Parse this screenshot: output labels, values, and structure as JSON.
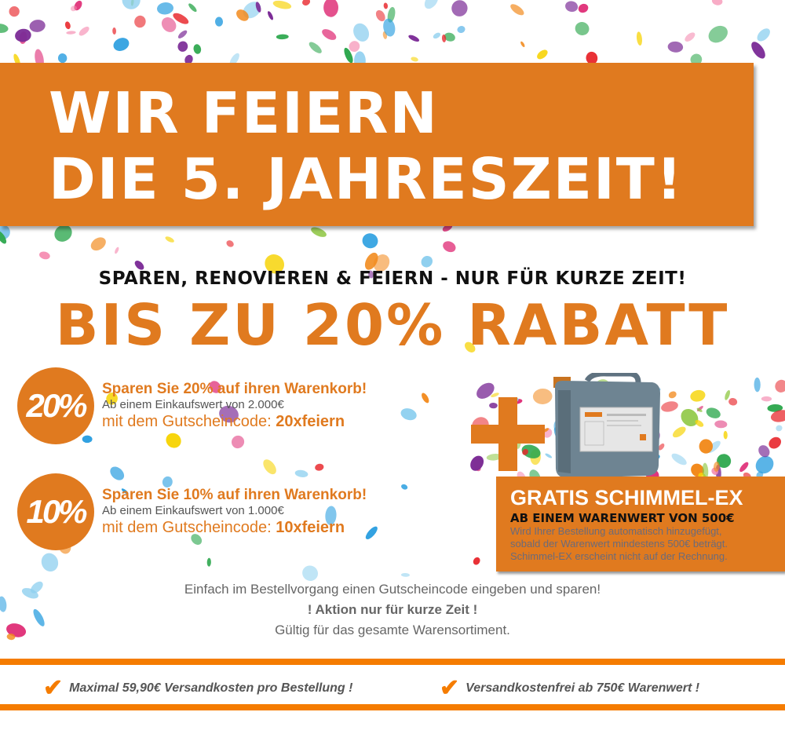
{
  "colors": {
    "brand_orange": "#e07a1f",
    "bar_orange": "#f57c00",
    "text_gray": "#666666"
  },
  "banner": {
    "line1": "WIR FEIERN",
    "line2": "DIE 5. JAHRESZEIT!"
  },
  "tagline": "SPAREN, RENOVIEREN & FEIERN - NUR FÜR KURZE ZEIT!",
  "headline": "BIS ZU 20% RABATT",
  "offers": [
    {
      "badge": "20%",
      "title": "Sparen Sie 20% auf ihren Warenkorb!",
      "condition": "Ab einem Einkaufswert von 2.000€",
      "code_label": "mit dem Gutscheincode: ",
      "code": "20xfeiern"
    },
    {
      "badge": "10%",
      "title": "Sparen Sie 10% auf ihren Warenkorb!",
      "condition": "Ab einem Einkaufswert von 1.000€",
      "code_label": "mit dem Gutscheincode: ",
      "code": "10xfeiern"
    }
  ],
  "gift": {
    "title": "GRATIS SCHIMMEL-EX",
    "subtitle": "AB EINEM WARENWERT VON 500€",
    "lines": [
      "Wird Ihrer Bestellung automatisch hinzugefügt,",
      "sobald der Warenwert mindestens 500€ beträgt.",
      "Schimmel-EX erscheint nicht auf der Rechnung."
    ],
    "icon": "plus-icon"
  },
  "info": [
    "Einfach im Bestellvorgang einen Gutscheincode eingeben und sparen!",
    "! Aktion nur für kurze Zeit !",
    "Gültig für das gesamte Warensortiment."
  ],
  "shipping": [
    {
      "icon": "checkmark-icon",
      "text": "Maximal 59,90€ Versandkosten pro Bestellung !"
    },
    {
      "icon": "checkmark-icon",
      "text": "Versandkostenfrei ab 750€ Warenwert !"
    }
  ]
}
